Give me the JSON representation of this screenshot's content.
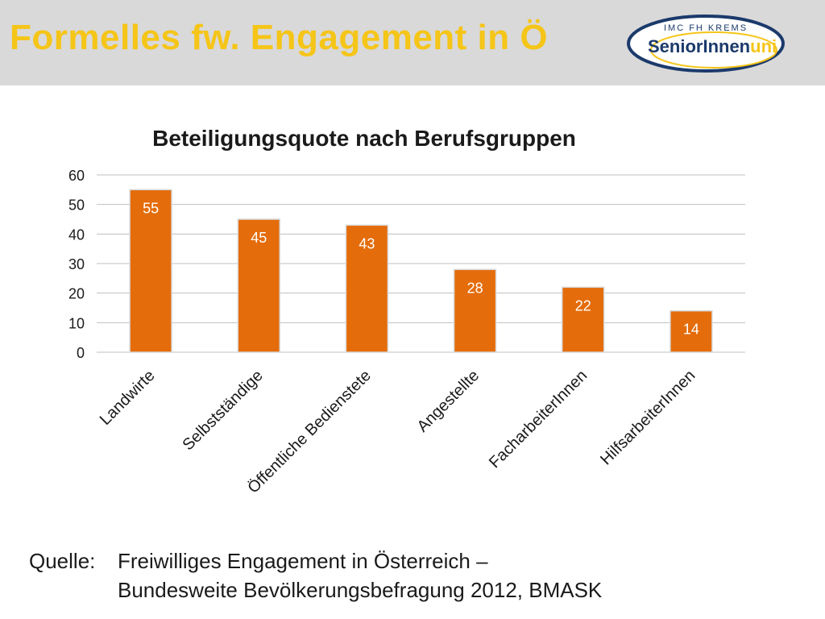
{
  "slide": {
    "title": "Formelles fw. Engagement in Ö"
  },
  "logo": {
    "top_text": "IMC FH KREMS",
    "main_text_a": "SeniorInnen",
    "main_text_b": "uni",
    "colors": {
      "navy": "#1b3a6b",
      "gold": "#f5c518"
    }
  },
  "chart_data": {
    "type": "bar",
    "title": "Beteiligungsquote nach Berufsgruppen",
    "categories": [
      "Landwirte",
      "Selbstständige",
      "Öffentliche Bedienstete",
      "Angestellte",
      "FacharbeiterInnen",
      "HilfsarbeiterInnen"
    ],
    "values": [
      55,
      45,
      43,
      28,
      22,
      14
    ],
    "ylim": [
      0,
      60
    ],
    "yticks": [
      0,
      10,
      20,
      30,
      40,
      50,
      60
    ],
    "grid": true,
    "legend": "none",
    "bar_color": "#e46c0a",
    "label_color": "#ffffff"
  },
  "source": {
    "label": "Quelle:",
    "text": "Freiwilliges Engagement in Österreich –\nBundesweite Bevölkerungsbefragung 2012, BMASK"
  }
}
